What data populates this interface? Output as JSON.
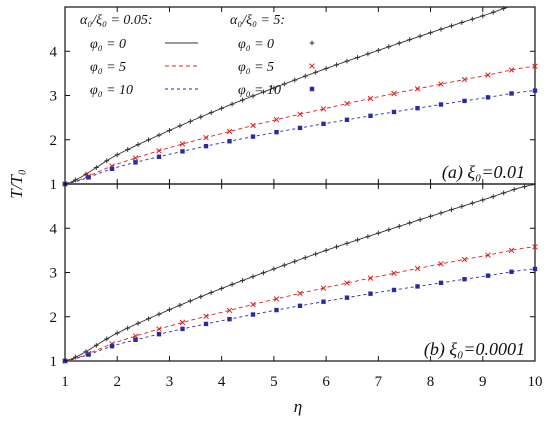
{
  "chart_data": {
    "type": "line",
    "xlabel": "η",
    "ylabel": "T/T₀",
    "xlim": [
      1,
      10
    ],
    "ylim": [
      1,
      5
    ],
    "x_ticks": [
      1,
      2,
      3,
      4,
      5,
      6,
      7,
      8,
      9,
      10
    ],
    "y_ticks": [
      1,
      2,
      3,
      4
    ],
    "legend": {
      "placement": "top-left",
      "line_header": "α₀/ξ₀ = 0.05:",
      "point_header": "α₀/ξ₀ = 5:",
      "entries": [
        "φ₀ = 0",
        "φ₀ = 5",
        "φ₀ = 10"
      ]
    },
    "colors": {
      "phi0": "#333333",
      "phi5": "#e02020",
      "phi10": "#2a2aa8"
    },
    "panels": [
      {
        "label": "(a) ξ₀=0.01",
        "series": [
          {
            "name": "φ₀ = 0",
            "x": [
              1,
              2,
              3,
              4,
              5,
              6,
              7,
              8,
              9,
              10
            ],
            "y": [
              1.0,
              1.66,
              2.21,
              2.71,
              3.17,
              3.61,
              4.02,
              4.42,
              4.8,
              5.17
            ]
          },
          {
            "name": "φ₀ = 5",
            "x": [
              1,
              2,
              3,
              4,
              5,
              6,
              7,
              8,
              9,
              10
            ],
            "y": [
              1.0,
              1.45,
              1.82,
              2.14,
              2.44,
              2.71,
              2.97,
              3.21,
              3.44,
              3.66
            ]
          },
          {
            "name": "φ₀ = 10",
            "x": [
              1,
              2,
              3,
              4,
              5,
              6,
              7,
              8,
              9,
              10
            ],
            "y": [
              1.0,
              1.38,
              1.67,
              1.93,
              2.16,
              2.37,
              2.57,
              2.76,
              2.94,
              3.11
            ]
          }
        ]
      },
      {
        "label": "(b) ξ₀=0.0001",
        "series": [
          {
            "name": "φ₀ = 0",
            "x": [
              1,
              2,
              3,
              4,
              5,
              6,
              7,
              8,
              9,
              10
            ],
            "y": [
              1.0,
              1.63,
              2.16,
              2.64,
              3.08,
              3.5,
              3.89,
              4.27,
              4.64,
              4.99
            ]
          },
          {
            "name": "φ₀ = 5",
            "x": [
              1,
              2,
              3,
              4,
              5,
              6,
              7,
              8,
              9,
              10
            ],
            "y": [
              1.0,
              1.43,
              1.79,
              2.1,
              2.39,
              2.66,
              2.91,
              3.15,
              3.37,
              3.58
            ]
          },
          {
            "name": "φ₀ = 10",
            "x": [
              1,
              2,
              3,
              4,
              5,
              6,
              7,
              8,
              9,
              10
            ],
            "y": [
              1.0,
              1.37,
              1.66,
              1.91,
              2.14,
              2.35,
              2.55,
              2.73,
              2.91,
              3.08
            ]
          }
        ]
      }
    ]
  }
}
